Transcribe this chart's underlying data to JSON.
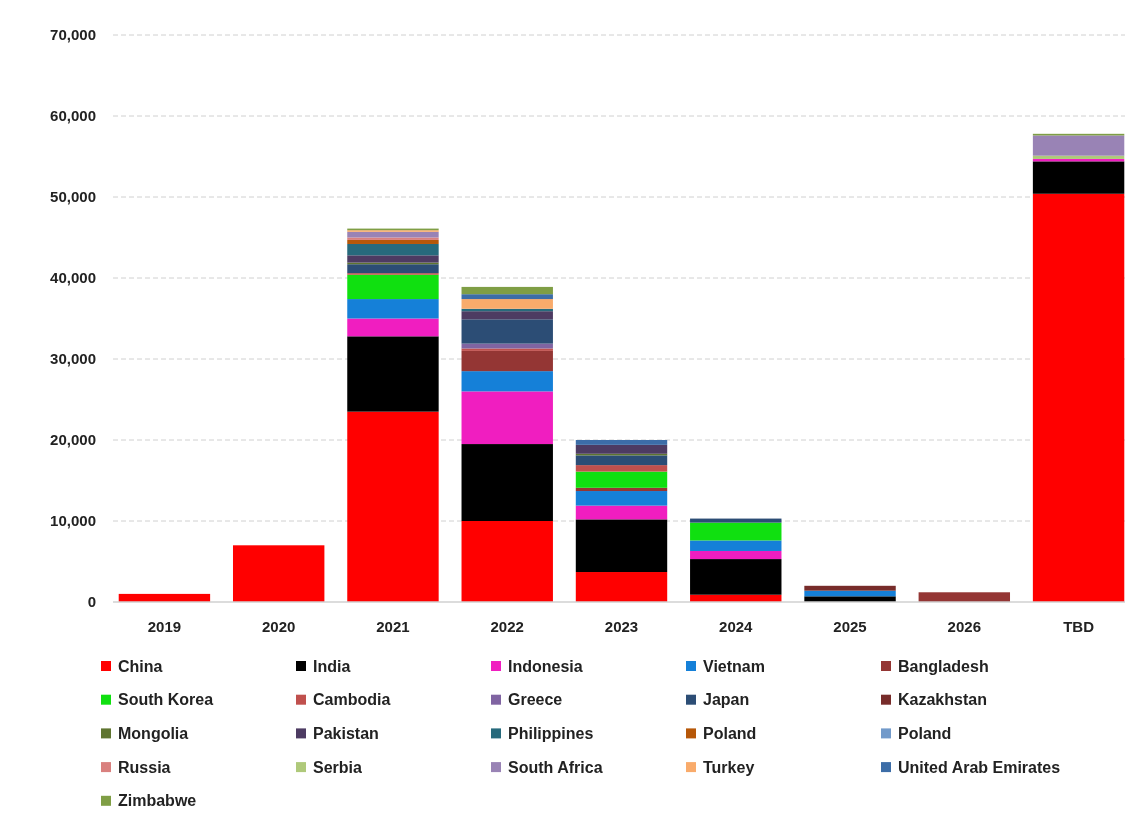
{
  "chart_data": {
    "type": "bar",
    "stacked": true,
    "categories": [
      "2019",
      "2020",
      "2021",
      "2022",
      "2023",
      "2024",
      "2025",
      "2026",
      "TBD"
    ],
    "ylim": [
      0,
      70000
    ],
    "yticks": [
      {
        "value": 0,
        "label": "0"
      },
      {
        "value": 10000,
        "label": "10,000"
      },
      {
        "value": 20000,
        "label": "20,000"
      },
      {
        "value": 30000,
        "label": "30,000"
      },
      {
        "value": 40000,
        "label": "40,000"
      },
      {
        "value": 50000,
        "label": "50,000"
      },
      {
        "value": 60000,
        "label": "60,000"
      },
      {
        "value": 70000,
        "label": "70,000"
      }
    ],
    "grid": "y",
    "legend": "bottom",
    "series": [
      {
        "name": "China",
        "color": "#ff0000",
        "values": [
          1000,
          7000,
          23500,
          10000,
          3700,
          900,
          null,
          null,
          50400
        ]
      },
      {
        "name": "India",
        "color": "#000000",
        "values": [
          null,
          null,
          9300,
          9500,
          6500,
          4400,
          700,
          null,
          4000
        ]
      },
      {
        "name": "Indonesia",
        "color": "#f01ec0",
        "values": [
          null,
          null,
          2200,
          6500,
          1700,
          1000,
          null,
          null,
          300
        ]
      },
      {
        "name": "Vietnam",
        "color": "#1580d8",
        "values": [
          null,
          null,
          2400,
          2500,
          1800,
          1300,
          700,
          null,
          null
        ]
      },
      {
        "name": "Bangladesh",
        "color": "#943634",
        "values": [
          null,
          null,
          null,
          2500,
          400,
          null,
          null,
          1200,
          null
        ]
      },
      {
        "name": "South Korea",
        "color": "#10e010",
        "values": [
          null,
          null,
          3000,
          null,
          2000,
          2200,
          null,
          null,
          null
        ]
      },
      {
        "name": "Cambodia",
        "color": "#c0504d",
        "values": [
          null,
          null,
          200,
          300,
          800,
          null,
          null,
          null,
          null
        ]
      },
      {
        "name": "Greece",
        "color": "#8064a2",
        "values": [
          null,
          null,
          null,
          600,
          null,
          null,
          null,
          null,
          null
        ]
      },
      {
        "name": "Japan",
        "color": "#2c4d75",
        "values": [
          null,
          null,
          1100,
          3000,
          1200,
          500,
          null,
          null,
          null
        ]
      },
      {
        "name": "Kazakhstan",
        "color": "#772c2a",
        "values": [
          null,
          null,
          null,
          null,
          null,
          null,
          600,
          null,
          null
        ]
      },
      {
        "name": "Mongolia",
        "color": "#5f7530",
        "values": [
          null,
          null,
          200,
          null,
          200,
          null,
          null,
          null,
          null
        ]
      },
      {
        "name": "Pakistan",
        "color": "#4d3b62",
        "values": [
          null,
          null,
          900,
          1000,
          1100,
          null,
          null,
          null,
          null
        ]
      },
      {
        "name": "Philippines",
        "color": "#276a7c",
        "values": [
          null,
          null,
          1400,
          300,
          null,
          null,
          null,
          null,
          null
        ]
      },
      {
        "name": "Poland",
        "color": "#b65708",
        "values": [
          null,
          null,
          500,
          null,
          null,
          null,
          null,
          null,
          null
        ]
      },
      {
        "name": "Poland",
        "color": "#729aca",
        "values": [
          null,
          null,
          null,
          null,
          null,
          null,
          null,
          null,
          null
        ]
      },
      {
        "name": "Russia",
        "color": "#d9807e",
        "values": [
          null,
          null,
          300,
          null,
          null,
          null,
          null,
          null,
          null
        ]
      },
      {
        "name": "Serbia",
        "color": "#afc97a",
        "values": [
          null,
          null,
          null,
          null,
          null,
          null,
          null,
          null,
          400
        ]
      },
      {
        "name": "South Africa",
        "color": "#9983b5",
        "values": [
          null,
          null,
          700,
          null,
          null,
          null,
          null,
          null,
          2500
        ]
      },
      {
        "name": "Turkey",
        "color": "#f9ab6b",
        "values": [
          null,
          null,
          200,
          1200,
          null,
          null,
          null,
          null,
          null
        ]
      },
      {
        "name": "United Arab Emirates",
        "color": "#3c6da7",
        "values": [
          null,
          null,
          null,
          600,
          600,
          null,
          null,
          null,
          null
        ]
      },
      {
        "name": "Zimbabwe",
        "color": "#7f9e45",
        "values": [
          null,
          null,
          200,
          900,
          null,
          null,
          null,
          null,
          200
        ]
      }
    ]
  }
}
